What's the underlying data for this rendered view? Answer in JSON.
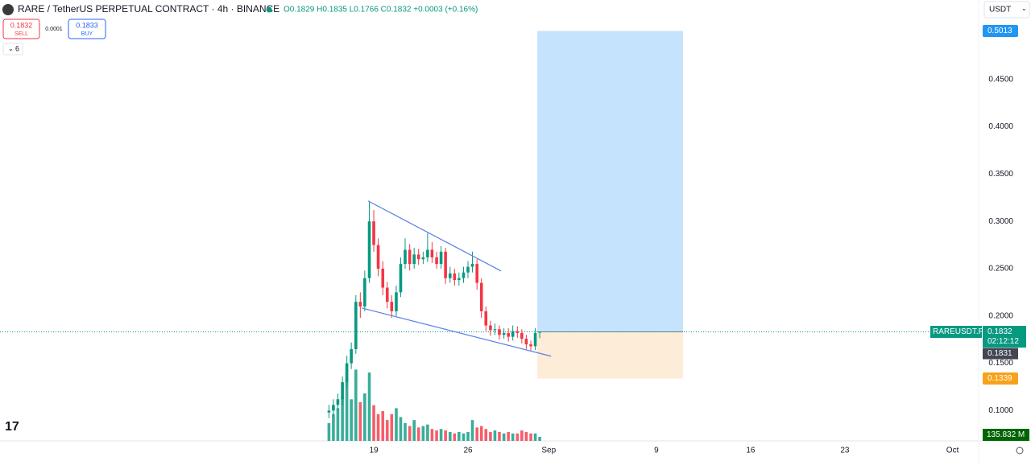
{
  "chart_data": {
    "type": "candlestick",
    "title": "RARE / TetherUS PERPETUAL CONTRACT · 4h · BINANCE",
    "legend_ohlc": "O0.1829 H0.1835 L0.1766 C0.1832 +0.0003 (+0.16%)",
    "sell_price": "0.1832",
    "sell_label": "SELL",
    "spread": "0.0001",
    "buy_price": "0.1833",
    "buy_label": "BUY",
    "indicators_count": "6",
    "currency": "USDT",
    "symbol_tag": "RAREUSDT.P",
    "last_price": 0.1832,
    "countdown": "02:12:12",
    "bid_tag": "0.1831",
    "volume_tag": "135.832 M",
    "up_color": "#089981",
    "down_color": "#f23645",
    "xlim": [
      -8.77,
      63.94
    ],
    "xticks": [
      19,
      26,
      {
        "value": 32,
        "label": "Sep"
      },
      {
        "value": 40,
        "label": "9"
      },
      {
        "value": 47,
        "label": "16"
      },
      {
        "value": 54,
        "label": "23"
      },
      {
        "value": 62,
        "label": "Oct"
      }
    ],
    "ylim": [
      0.068,
      0.534
    ],
    "yticks": [
      {
        "value": 0.1,
        "label": "0.1000"
      },
      {
        "value": 0.15,
        "label": "0.1500"
      },
      {
        "value": 0.2,
        "label": "0.2000"
      },
      {
        "value": 0.25,
        "label": "0.2500"
      },
      {
        "value": 0.3,
        "label": "0.3000"
      },
      {
        "value": 0.35,
        "label": "0.3500"
      },
      {
        "value": 0.4,
        "label": "0.4000"
      },
      {
        "value": 0.45,
        "label": "0.4500"
      }
    ],
    "x": [
      15.67,
      16,
      16.33,
      16.67,
      17,
      17.33,
      17.67,
      18,
      18.33,
      18.67,
      19,
      19.33,
      19.67,
      20,
      20.33,
      20.67,
      21,
      21.33,
      21.67,
      22,
      22.33,
      22.67,
      23,
      23.33,
      23.67,
      24,
      24.33,
      24.67,
      25,
      25.33,
      25.67,
      26,
      26.33,
      26.67,
      27,
      27.33,
      27.67,
      28,
      28.33,
      28.67,
      29,
      29.33,
      29.67,
      30,
      30.33,
      30.67,
      31,
      31.33
    ],
    "ohlc": [
      [
        0.098,
        0.106,
        0.092,
        0.1
      ],
      [
        0.1,
        0.112,
        0.094,
        0.106
      ],
      [
        0.106,
        0.118,
        0.1,
        0.112
      ],
      [
        0.112,
        0.136,
        0.106,
        0.13
      ],
      [
        0.13,
        0.158,
        0.124,
        0.15
      ],
      [
        0.15,
        0.172,
        0.144,
        0.165
      ],
      [
        0.165,
        0.222,
        0.16,
        0.215
      ],
      [
        0.215,
        0.225,
        0.198,
        0.21
      ],
      [
        0.21,
        0.248,
        0.205,
        0.24
      ],
      [
        0.24,
        0.3215,
        0.235,
        0.3
      ],
      [
        0.3,
        0.312,
        0.268,
        0.275
      ],
      [
        0.275,
        0.282,
        0.242,
        0.25
      ],
      [
        0.25,
        0.258,
        0.222,
        0.23
      ],
      [
        0.23,
        0.236,
        0.208,
        0.215
      ],
      [
        0.215,
        0.222,
        0.198,
        0.205
      ],
      [
        0.205,
        0.232,
        0.2,
        0.225
      ],
      [
        0.225,
        0.262,
        0.22,
        0.255
      ],
      [
        0.255,
        0.282,
        0.25,
        0.27
      ],
      [
        0.27,
        0.276,
        0.248,
        0.255
      ],
      [
        0.255,
        0.272,
        0.25,
        0.265
      ],
      [
        0.265,
        0.271,
        0.254,
        0.26
      ],
      [
        0.26,
        0.268,
        0.255,
        0.262
      ],
      [
        0.262,
        0.2876,
        0.257,
        0.27
      ],
      [
        0.27,
        0.278,
        0.256,
        0.262
      ],
      [
        0.262,
        0.268,
        0.25,
        0.255
      ],
      [
        0.255,
        0.274,
        0.25,
        0.268
      ],
      [
        0.268,
        0.272,
        0.234,
        0.24
      ],
      [
        0.24,
        0.252,
        0.235,
        0.245
      ],
      [
        0.245,
        0.25,
        0.232,
        0.238
      ],
      [
        0.238,
        0.246,
        0.232,
        0.24
      ],
      [
        0.24,
        0.252,
        0.235,
        0.246
      ],
      [
        0.246,
        0.258,
        0.24,
        0.252
      ],
      [
        0.252,
        0.268,
        0.246,
        0.255
      ],
      [
        0.255,
        0.26,
        0.228,
        0.235
      ],
      [
        0.235,
        0.24,
        0.198,
        0.205
      ],
      [
        0.205,
        0.21,
        0.184,
        0.19
      ],
      [
        0.19,
        0.195,
        0.179,
        0.185
      ],
      [
        0.185,
        0.192,
        0.18,
        0.186
      ],
      [
        0.186,
        0.19,
        0.175,
        0.18
      ],
      [
        0.18,
        0.187,
        0.176,
        0.182
      ],
      [
        0.182,
        0.187,
        0.173,
        0.178
      ],
      [
        0.178,
        0.19,
        0.174,
        0.184
      ],
      [
        0.184,
        0.189,
        0.177,
        0.182
      ],
      [
        0.182,
        0.186,
        0.171,
        0.176
      ],
      [
        0.176,
        0.18,
        0.165,
        0.17
      ],
      [
        0.17,
        0.174,
        0.163,
        0.168
      ],
      [
        0.168,
        0.187,
        0.164,
        0.182
      ],
      [
        0.1829,
        0.1835,
        0.1766,
        0.1832
      ]
    ],
    "volume": [
      600,
      900,
      1100,
      1500,
      2100,
      1400,
      2400,
      1300,
      1600,
      2300,
      1200,
      900,
      1000,
      700,
      900,
      1100,
      800,
      600,
      500,
      700,
      450,
      500,
      550,
      400,
      350,
      400,
      350,
      300,
      250,
      300,
      250,
      300,
      700,
      450,
      500,
      400,
      300,
      350,
      300,
      250,
      300,
      250,
      250,
      350,
      300,
      250,
      250,
      135.832
    ],
    "vlim": [
      0,
      2600
    ],
    "trendlines": [
      [
        [
          18.58,
          0.3216
        ],
        [
          28.46,
          0.2476
        ]
      ],
      [
        [
          18.1,
          0.2085
        ],
        [
          32.17,
          0.1575
        ]
      ]
    ],
    "position": {
      "start": 31.15,
      "end": 41.98,
      "entry": 0.1832,
      "target": 0.5013,
      "stop": 0.1339,
      "target_label": "0.5013",
      "stop_label": "0.1339"
    }
  }
}
